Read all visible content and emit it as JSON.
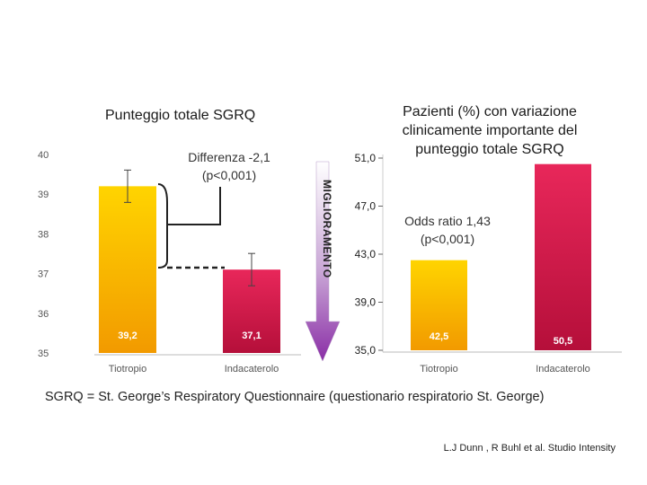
{
  "left_chart": {
    "title": "Punteggio totale SGRQ",
    "annotation_line1": "Differenza -2,1",
    "annotation_line2": "(p<0,001)",
    "arrow_label": "MIGLIORAMENTO"
  },
  "right_chart": {
    "title": "Pazienti (%) con variazione clinicamente importante del punteggio totale SGRQ",
    "annotation_line1": "Odds ratio 1,43",
    "annotation_line2": "(p<0,001)"
  },
  "footnote": "SGRQ = St. George’s Respiratory Questionnaire (questionario respiratorio St. George)",
  "citation": "L.J Dunn , R Buhl et al.  Studio Intensity",
  "colors": {
    "tiotropio": "#f7b500",
    "indacaterolo": "#d8174a",
    "axis": "#666666"
  },
  "chart_data": [
    {
      "type": "bar",
      "title": "Punteggio totale SGRQ",
      "categories": [
        "Tiotropio",
        "Indacaterolo"
      ],
      "values": [
        39.2,
        37.1
      ],
      "value_labels": [
        "39,2",
        "37,1"
      ],
      "error_bars": true,
      "ylim": [
        35,
        40
      ],
      "yticks": [
        "35",
        "36",
        "37",
        "38",
        "39",
        "40"
      ],
      "ytick_values": [
        35,
        36,
        37,
        38,
        39,
        40
      ],
      "xlabel": "",
      "ylabel": ""
    },
    {
      "type": "bar",
      "title": "Pazienti (%) con variazione clinicamente importante del punteggio totale SGRQ",
      "categories": [
        "Tiotropio",
        "Indacaterolo"
      ],
      "values": [
        42.5,
        50.5
      ],
      "value_labels": [
        "42,5",
        "50,5"
      ],
      "ylim": [
        35,
        51
      ],
      "yticks": [
        "35,0",
        "39,0",
        "43,0",
        "47,0",
        "51,0"
      ],
      "ytick_values": [
        35,
        39,
        43,
        47,
        51
      ],
      "xlabel": "",
      "ylabel": ""
    }
  ]
}
